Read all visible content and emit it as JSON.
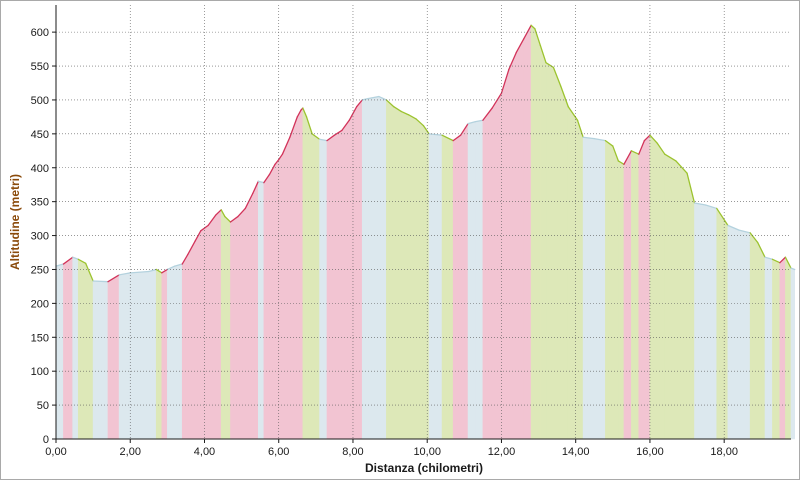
{
  "chart_data": {
    "type": "area",
    "xlabel": "Distanza (chilometri)",
    "ylabel": "Altitudine (metri)",
    "xlim": [
      0,
      19.8
    ],
    "ylim": [
      0,
      640
    ],
    "x_ticks": [
      0,
      2,
      4,
      6,
      8,
      10,
      12,
      14,
      16,
      18
    ],
    "x_tick_labels": [
      "0,00",
      "2,00",
      "4,00",
      "6,00",
      "8,00",
      "10,00",
      "12,00",
      "14,00",
      "16,00",
      "18,00"
    ],
    "y_ticks": [
      0,
      50,
      100,
      150,
      200,
      250,
      300,
      350,
      400,
      450,
      500,
      550,
      600
    ],
    "y_tick_labels": [
      "0",
      "50",
      "100",
      "150",
      "200",
      "250",
      "300",
      "350",
      "400",
      "450",
      "500",
      "550",
      "600"
    ],
    "grid": true,
    "colors": {
      "uphill": "#f2c4d2",
      "uphill_line": "#d2335a",
      "downhill": "#dde8b8",
      "downhill_line": "#9cc32f",
      "flat": "#dce8ee",
      "flat_line": "#b4d2de",
      "label": "#8a4a0a",
      "xlabel": "#1a1a1a"
    },
    "profile": [
      [
        0,
        255
      ],
      [
        0.2,
        258
      ],
      [
        0.45,
        268
      ],
      [
        0.6,
        265
      ],
      [
        0.8,
        259
      ],
      [
        1.0,
        233
      ],
      [
        1.4,
        232
      ],
      [
        1.7,
        242
      ],
      [
        2.0,
        245
      ],
      [
        2.5,
        247
      ],
      [
        2.7,
        250
      ],
      [
        2.85,
        245
      ],
      [
        3.0,
        250
      ],
      [
        3.2,
        255
      ],
      [
        3.4,
        258
      ],
      [
        3.55,
        272
      ],
      [
        3.75,
        292
      ],
      [
        3.9,
        307
      ],
      [
        4.1,
        315
      ],
      [
        4.3,
        330
      ],
      [
        4.45,
        338
      ],
      [
        4.55,
        328
      ],
      [
        4.7,
        320
      ],
      [
        4.9,
        328
      ],
      [
        5.1,
        340
      ],
      [
        5.3,
        362
      ],
      [
        5.45,
        380
      ],
      [
        5.6,
        378
      ],
      [
        5.75,
        390
      ],
      [
        5.9,
        405
      ],
      [
        6.0,
        412
      ],
      [
        6.1,
        420
      ],
      [
        6.3,
        445
      ],
      [
        6.5,
        475
      ],
      [
        6.6,
        485
      ],
      [
        6.65,
        488
      ],
      [
        6.75,
        475
      ],
      [
        6.9,
        450
      ],
      [
        7.1,
        442
      ],
      [
        7.3,
        440
      ],
      [
        7.5,
        448
      ],
      [
        7.7,
        455
      ],
      [
        7.9,
        470
      ],
      [
        8.1,
        490
      ],
      [
        8.25,
        500
      ],
      [
        8.4,
        502
      ],
      [
        8.7,
        505
      ],
      [
        8.9,
        500
      ],
      [
        9.1,
        490
      ],
      [
        9.3,
        483
      ],
      [
        9.5,
        478
      ],
      [
        9.7,
        472
      ],
      [
        9.9,
        462
      ],
      [
        10.05,
        450
      ],
      [
        10.4,
        448
      ],
      [
        10.7,
        440
      ],
      [
        10.9,
        448
      ],
      [
        11.1,
        465
      ],
      [
        11.3,
        468
      ],
      [
        11.5,
        470
      ],
      [
        11.75,
        488
      ],
      [
        12.0,
        510
      ],
      [
        12.2,
        545
      ],
      [
        12.4,
        570
      ],
      [
        12.6,
        590
      ],
      [
        12.8,
        610
      ],
      [
        12.9,
        605
      ],
      [
        13.05,
        580
      ],
      [
        13.2,
        555
      ],
      [
        13.4,
        548
      ],
      [
        13.6,
        520
      ],
      [
        13.8,
        490
      ],
      [
        14.05,
        470
      ],
      [
        14.2,
        445
      ],
      [
        14.5,
        443
      ],
      [
        14.8,
        440
      ],
      [
        15.0,
        432
      ],
      [
        15.15,
        410
      ],
      [
        15.3,
        405
      ],
      [
        15.5,
        425
      ],
      [
        15.7,
        420
      ],
      [
        15.85,
        440
      ],
      [
        16.0,
        448
      ],
      [
        16.2,
        436
      ],
      [
        16.4,
        420
      ],
      [
        16.7,
        410
      ],
      [
        17.0,
        392
      ],
      [
        17.2,
        348
      ],
      [
        17.5,
        345
      ],
      [
        17.8,
        340
      ],
      [
        18.1,
        315
      ],
      [
        18.4,
        308
      ],
      [
        18.7,
        304
      ],
      [
        18.9,
        290
      ],
      [
        19.1,
        268
      ],
      [
        19.3,
        265
      ],
      [
        19.5,
        260
      ],
      [
        19.65,
        268
      ],
      [
        19.8,
        252
      ],
      [
        19.9,
        250
      ]
    ]
  }
}
